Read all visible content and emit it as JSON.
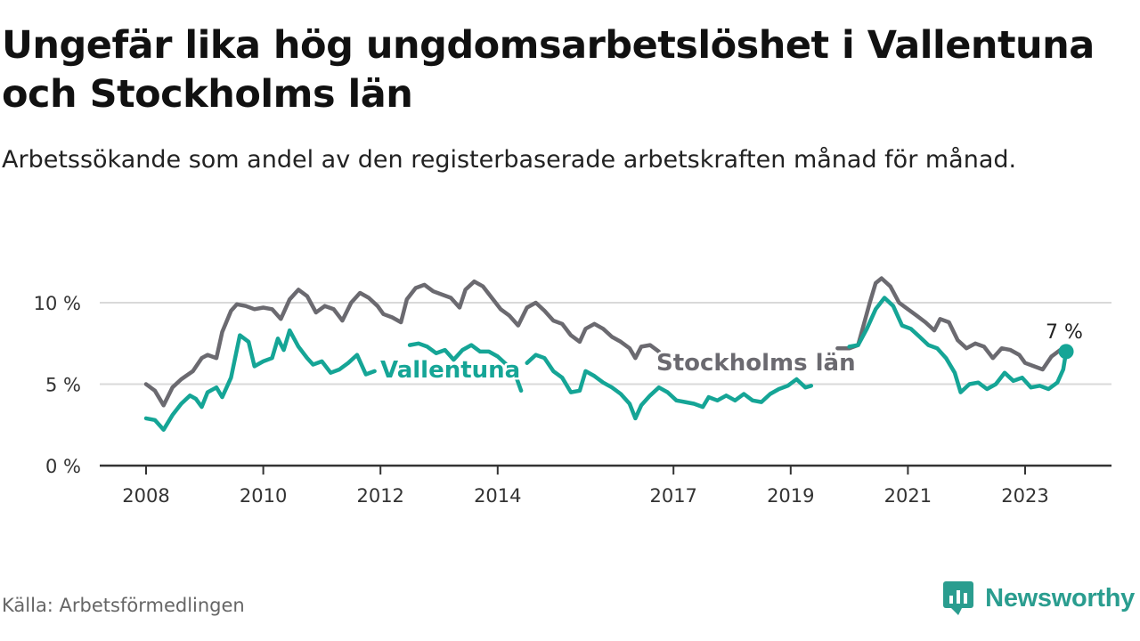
{
  "title": "Ungefär lika hög ungdomsarbetslöshet i Vallentuna och Stockholms län",
  "subtitle": "Arbetssökande som andel av den registerbaserade arbetskraften månad för månad.",
  "source": "Källa: Arbetsförmedlingen",
  "brand": "Newsworthy",
  "colors": {
    "stockholm": "#6b6a70",
    "vallentuna": "#15a596",
    "grid": "#d9d9d9",
    "axis": "#333333"
  },
  "chart_data": {
    "type": "line",
    "x_unit": "year (decimal)",
    "xlim": [
      2008,
      2024
    ],
    "ylim": [
      0,
      10
    ],
    "y_ticks": [
      {
        "value": 0,
        "label": "0 %"
      },
      {
        "value": 5,
        "label": "5 %"
      },
      {
        "value": 10,
        "label": "10 %"
      }
    ],
    "x_ticks": [
      {
        "value": 2008,
        "label": "2008"
      },
      {
        "value": 2010,
        "label": "2010"
      },
      {
        "value": 2012,
        "label": "2012"
      },
      {
        "value": 2014,
        "label": "2014"
      },
      {
        "value": 2017,
        "label": "2017"
      },
      {
        "value": 2019,
        "label": "2019"
      },
      {
        "value": 2021,
        "label": "2021"
      },
      {
        "value": 2023,
        "label": "2023"
      }
    ],
    "series": [
      {
        "name": "Stockholms län",
        "label": "Stockholms län",
        "points": [
          [
            2008.0,
            5.0
          ],
          [
            2008.15,
            4.6
          ],
          [
            2008.3,
            3.7
          ],
          [
            2008.45,
            4.8
          ],
          [
            2008.6,
            5.3
          ],
          [
            2008.8,
            5.8
          ],
          [
            2008.95,
            6.6
          ],
          [
            2009.05,
            6.8
          ],
          [
            2009.2,
            6.6
          ],
          [
            2009.3,
            8.2
          ],
          [
            2009.45,
            9.5
          ],
          [
            2009.55,
            9.9
          ],
          [
            2009.7,
            9.8
          ],
          [
            2009.85,
            9.6
          ],
          [
            2010.0,
            9.7
          ],
          [
            2010.15,
            9.6
          ],
          [
            2010.3,
            9.0
          ],
          [
            2010.45,
            10.2
          ],
          [
            2010.6,
            10.8
          ],
          [
            2010.75,
            10.4
          ],
          [
            2010.9,
            9.4
          ],
          [
            2011.05,
            9.8
          ],
          [
            2011.2,
            9.6
          ],
          [
            2011.35,
            8.9
          ],
          [
            2011.5,
            10.0
          ],
          [
            2011.65,
            10.6
          ],
          [
            2011.8,
            10.3
          ],
          [
            2011.95,
            9.8
          ],
          [
            2012.05,
            9.3
          ],
          [
            2012.2,
            9.1
          ],
          [
            2012.35,
            8.8
          ],
          [
            2012.45,
            10.2
          ],
          [
            2012.6,
            10.9
          ],
          [
            2012.75,
            11.1
          ],
          [
            2012.9,
            10.7
          ],
          [
            2013.05,
            10.5
          ],
          [
            2013.2,
            10.3
          ],
          [
            2013.35,
            9.7
          ],
          [
            2013.45,
            10.8
          ],
          [
            2013.6,
            11.3
          ],
          [
            2013.75,
            11.0
          ],
          [
            2013.9,
            10.3
          ],
          [
            2014.05,
            9.6
          ],
          [
            2014.2,
            9.2
          ],
          [
            2014.35,
            8.6
          ],
          [
            2014.5,
            9.7
          ],
          [
            2014.65,
            10.0
          ],
          [
            2014.8,
            9.5
          ],
          [
            2014.95,
            8.9
          ],
          [
            2015.1,
            8.7
          ],
          [
            2015.25,
            8.0
          ],
          [
            2015.4,
            7.6
          ],
          [
            2015.5,
            8.4
          ],
          [
            2015.65,
            8.7
          ],
          [
            2015.8,
            8.4
          ],
          [
            2015.95,
            7.9
          ],
          [
            2016.1,
            7.6
          ],
          [
            2016.25,
            7.2
          ],
          [
            2016.35,
            6.6
          ],
          [
            2016.45,
            7.3
          ],
          [
            2016.6,
            7.4
          ],
          [
            2016.75,
            7.0
          ]
        ],
        "points_after_label": [
          [
            2019.8,
            7.2
          ],
          [
            2020.0,
            7.2
          ],
          [
            2020.15,
            7.4
          ],
          [
            2020.35,
            10.0
          ],
          [
            2020.45,
            11.2
          ],
          [
            2020.55,
            11.5
          ],
          [
            2020.7,
            11.0
          ],
          [
            2020.85,
            10.0
          ],
          [
            2021.0,
            9.6
          ],
          [
            2021.15,
            9.2
          ],
          [
            2021.3,
            8.8
          ],
          [
            2021.45,
            8.3
          ],
          [
            2021.55,
            9.0
          ],
          [
            2021.7,
            8.8
          ],
          [
            2021.85,
            7.7
          ],
          [
            2022.0,
            7.2
          ],
          [
            2022.15,
            7.5
          ],
          [
            2022.3,
            7.3
          ],
          [
            2022.45,
            6.6
          ],
          [
            2022.6,
            7.2
          ],
          [
            2022.75,
            7.1
          ],
          [
            2022.9,
            6.8
          ],
          [
            2023.0,
            6.3
          ],
          [
            2023.15,
            6.1
          ],
          [
            2023.3,
            5.9
          ],
          [
            2023.45,
            6.7
          ],
          [
            2023.6,
            7.1
          ],
          [
            2023.7,
            6.9
          ]
        ]
      },
      {
        "name": "Vallentuna",
        "label": "Vallentuna",
        "points": [
          [
            2008.0,
            2.9
          ],
          [
            2008.15,
            2.8
          ],
          [
            2008.3,
            2.2
          ],
          [
            2008.45,
            3.1
          ],
          [
            2008.6,
            3.8
          ],
          [
            2008.75,
            4.3
          ],
          [
            2008.85,
            4.1
          ],
          [
            2008.95,
            3.6
          ],
          [
            2009.05,
            4.5
          ],
          [
            2009.2,
            4.8
          ],
          [
            2009.3,
            4.2
          ],
          [
            2009.45,
            5.4
          ],
          [
            2009.6,
            8.0
          ],
          [
            2009.75,
            7.6
          ],
          [
            2009.85,
            6.1
          ],
          [
            2010.0,
            6.4
          ],
          [
            2010.15,
            6.6
          ],
          [
            2010.25,
            7.8
          ],
          [
            2010.35,
            7.1
          ],
          [
            2010.45,
            8.3
          ],
          [
            2010.6,
            7.3
          ],
          [
            2010.75,
            6.6
          ],
          [
            2010.85,
            6.2
          ],
          [
            2011.0,
            6.4
          ],
          [
            2011.15,
            5.7
          ],
          [
            2011.3,
            5.9
          ],
          [
            2011.45,
            6.3
          ],
          [
            2011.6,
            6.8
          ],
          [
            2011.75,
            5.6
          ],
          [
            2011.9,
            5.8
          ]
        ],
        "points_mid": [
          [
            2012.5,
            7.4
          ],
          [
            2012.65,
            7.5
          ],
          [
            2012.8,
            7.3
          ],
          [
            2012.95,
            6.9
          ],
          [
            2013.1,
            7.1
          ],
          [
            2013.25,
            6.5
          ],
          [
            2013.4,
            7.1
          ],
          [
            2013.55,
            7.4
          ],
          [
            2013.7,
            7.0
          ],
          [
            2013.85,
            7.0
          ],
          [
            2014.0,
            6.7
          ],
          [
            2014.15,
            6.2
          ],
          [
            2014.3,
            5.6
          ],
          [
            2014.4,
            4.6
          ]
        ],
        "points_late": [
          [
            2014.5,
            6.3
          ],
          [
            2014.65,
            6.8
          ],
          [
            2014.8,
            6.6
          ],
          [
            2014.95,
            5.8
          ],
          [
            2015.1,
            5.4
          ],
          [
            2015.25,
            4.5
          ],
          [
            2015.4,
            4.6
          ],
          [
            2015.5,
            5.8
          ],
          [
            2015.65,
            5.5
          ],
          [
            2015.8,
            5.1
          ],
          [
            2015.95,
            4.8
          ],
          [
            2016.1,
            4.4
          ],
          [
            2016.25,
            3.8
          ],
          [
            2016.35,
            2.9
          ],
          [
            2016.45,
            3.7
          ],
          [
            2016.6,
            4.3
          ],
          [
            2016.75,
            4.8
          ],
          [
            2016.9,
            4.5
          ],
          [
            2017.05,
            4.0
          ],
          [
            2017.2,
            3.9
          ],
          [
            2017.35,
            3.8
          ],
          [
            2017.5,
            3.6
          ],
          [
            2017.6,
            4.2
          ],
          [
            2017.75,
            4.0
          ],
          [
            2017.9,
            4.3
          ],
          [
            2018.05,
            4.0
          ],
          [
            2018.2,
            4.4
          ],
          [
            2018.35,
            4.0
          ],
          [
            2018.5,
            3.9
          ],
          [
            2018.65,
            4.4
          ],
          [
            2018.8,
            4.7
          ],
          [
            2018.95,
            4.9
          ],
          [
            2019.1,
            5.3
          ],
          [
            2019.25,
            4.8
          ],
          [
            2019.35,
            4.9
          ]
        ],
        "points_end": [
          [
            2020.0,
            7.3
          ],
          [
            2020.15,
            7.4
          ],
          [
            2020.3,
            8.4
          ],
          [
            2020.45,
            9.6
          ],
          [
            2020.6,
            10.3
          ],
          [
            2020.75,
            9.8
          ],
          [
            2020.9,
            8.6
          ],
          [
            2021.05,
            8.4
          ],
          [
            2021.2,
            7.9
          ],
          [
            2021.35,
            7.4
          ],
          [
            2021.5,
            7.2
          ],
          [
            2021.65,
            6.6
          ],
          [
            2021.8,
            5.7
          ],
          [
            2021.9,
            4.5
          ],
          [
            2022.05,
            5.0
          ],
          [
            2022.2,
            5.1
          ],
          [
            2022.35,
            4.7
          ],
          [
            2022.5,
            5.0
          ],
          [
            2022.65,
            5.7
          ],
          [
            2022.8,
            5.2
          ],
          [
            2022.95,
            5.4
          ],
          [
            2023.1,
            4.8
          ],
          [
            2023.25,
            4.9
          ],
          [
            2023.4,
            4.7
          ],
          [
            2023.55,
            5.1
          ],
          [
            2023.65,
            5.9
          ],
          [
            2023.7,
            7.0
          ]
        ],
        "end_value": 7.0,
        "end_label": "7 %"
      }
    ]
  }
}
